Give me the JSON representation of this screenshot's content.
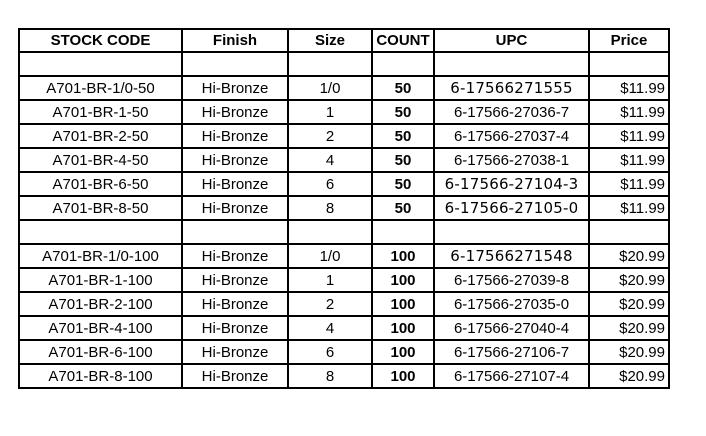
{
  "table": {
    "headers": [
      "STOCK CODE",
      "Finish",
      "Size",
      "COUNT",
      "UPC",
      "Price"
    ],
    "column_keys": [
      "stock-code",
      "finish",
      "size",
      "count",
      "upc",
      "price"
    ],
    "rows": [
      {
        "spacer": true,
        "cells": [
          "",
          "",
          "",
          "",
          "",
          ""
        ]
      },
      {
        "cells": [
          "A701-BR-1/0-50",
          "Hi-Bronze",
          "1/0",
          "50",
          "6-17566271555",
          "$11.99"
        ],
        "upc_alt": true
      },
      {
        "cells": [
          "A701-BR-1-50",
          "Hi-Bronze",
          "1",
          "50",
          "6-17566-27036-7",
          "$11.99"
        ]
      },
      {
        "cells": [
          "A701-BR-2-50",
          "Hi-Bronze",
          "2",
          "50",
          "6-17566-27037-4",
          "$11.99"
        ]
      },
      {
        "cells": [
          "A701-BR-4-50",
          "Hi-Bronze",
          "4",
          "50",
          "6-17566-27038-1",
          "$11.99"
        ]
      },
      {
        "cells": [
          "A701-BR-6-50",
          "Hi-Bronze",
          "6",
          "50",
          "6-17566-27104-3",
          "$11.99"
        ],
        "upc_alt": true
      },
      {
        "cells": [
          "A701-BR-8-50",
          "Hi-Bronze",
          "8",
          "50",
          "6-17566-27105-0",
          "$11.99"
        ],
        "upc_alt": true
      },
      {
        "spacer": true,
        "cells": [
          "",
          "",
          "",
          "",
          "",
          ""
        ]
      },
      {
        "cells": [
          "A701-BR-1/0-100",
          "Hi-Bronze",
          "1/0",
          "100",
          "6-17566271548",
          "$20.99"
        ],
        "upc_alt": true
      },
      {
        "cells": [
          "A701-BR-1-100",
          "Hi-Bronze",
          "1",
          "100",
          "6-17566-27039-8",
          "$20.99"
        ]
      },
      {
        "cells": [
          "A701-BR-2-100",
          "Hi-Bronze",
          "2",
          "100",
          "6-17566-27035-0",
          "$20.99"
        ]
      },
      {
        "cells": [
          "A701-BR-4-100",
          "Hi-Bronze",
          "4",
          "100",
          "6-17566-27040-4",
          "$20.99"
        ]
      },
      {
        "cells": [
          "A701-BR-6-100",
          "Hi-Bronze",
          "6",
          "100",
          "6-17566-27106-7",
          "$20.99"
        ]
      },
      {
        "cells": [
          "A701-BR-8-100",
          "Hi-Bronze",
          "8",
          "100",
          "6-17566-27107-4",
          "$20.99"
        ]
      }
    ],
    "colors": {
      "border": "#000000",
      "text": "#000000",
      "background": "#ffffff"
    }
  }
}
